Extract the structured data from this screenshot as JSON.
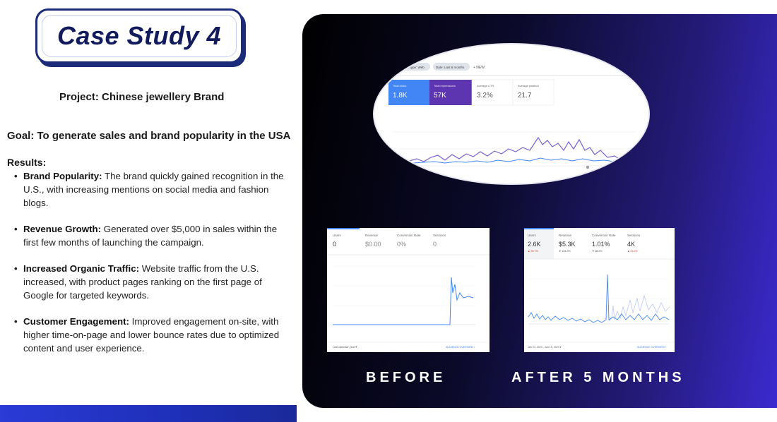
{
  "title": "Case Study 4",
  "project": "Project: Chinese jewellery Brand",
  "goal": "Goal: To generate sales and brand popularity in the USA",
  "results_heading": "Results:",
  "results": [
    {
      "label": "Brand Popularity:",
      "text": " The brand quickly gained recognition in the U.S., with increasing mentions on social media and fashion blogs."
    },
    {
      "label": "Revenue Growth:",
      "text": " Generated over $5,000 in sales within the first few months of launching the campaign."
    },
    {
      "label": "Increased Organic Traffic:",
      "text": " Website traffic from the U.S. increased, with product pages ranking on the first page of Google for targeted keywords."
    },
    {
      "label": "Customer Engagement:",
      "text": " Improved engagement on-site, with higher time-on-page and lower bounce rates due to optimized content and user experience."
    }
  ],
  "search_console": {
    "filter_chips": [
      "Search type: Web",
      "Date: Last 6 months"
    ],
    "new_label": "+ NEW",
    "metrics": [
      {
        "label": "Total clicks",
        "value": "1.8K"
      },
      {
        "label": "Total impressions",
        "value": "57K"
      },
      {
        "label": "Average CTR",
        "value": "3.2%"
      },
      {
        "label": "Average position",
        "value": "21.7"
      }
    ],
    "colors": {
      "clicks": "#4285f4",
      "impressions": "#5e35b1"
    }
  },
  "before": {
    "caption": "BEFORE",
    "metrics": [
      {
        "label": "Users",
        "value": "0"
      },
      {
        "label": "Revenue",
        "value": "$0.00"
      },
      {
        "label": "Conversion Rate",
        "value": "0%"
      },
      {
        "label": "Sessions",
        "value": "0"
      }
    ],
    "date_label": "Last calendar year ▾",
    "link_label": "AUDIENCE OVERVIEW  ›"
  },
  "after": {
    "caption": "AFTER 5 MONTHS",
    "metrics": [
      {
        "label": "Users",
        "value": "2.6K",
        "delta": "▲ 39.7%"
      },
      {
        "label": "Revenue",
        "value": "$5.3K",
        "delta": "▼ 164.3%"
      },
      {
        "label": "Conversion Rate",
        "value": "1.01%",
        "delta": "▼ 88.5%"
      },
      {
        "label": "Sessions",
        "value": "4K",
        "delta": "▲ 22.2%"
      }
    ],
    "date_label": "Jan 24, 2023 - Jun 19, 2023 ▾",
    "link_label": "AUDIENCE OVERVIEW  ›"
  },
  "colors": {
    "accent": "#1c2a7a",
    "panel_end": "#3b2ad0",
    "bar": "#2a3bd6"
  }
}
